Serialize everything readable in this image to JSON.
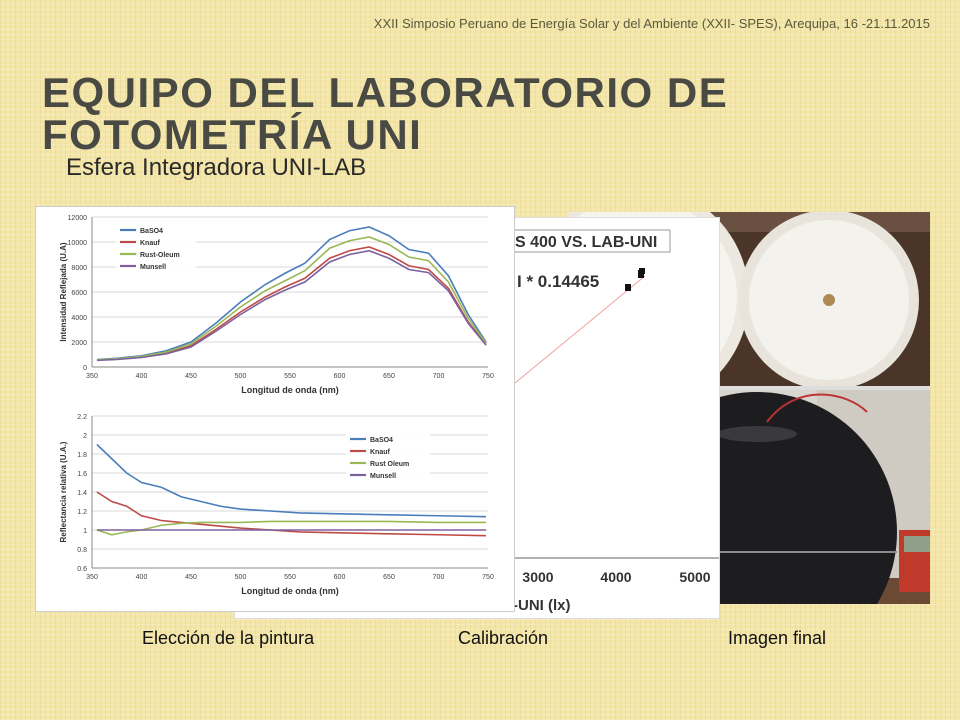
{
  "header": {
    "conference": "XXII Simposio Peruano de Energía Solar y del Ambiente (XXII- SPES), Arequipa, 16 -21.11.2015"
  },
  "slide": {
    "title": "Equipo del Laboratorio de Fotometría UNI",
    "subtitle": "Esfera Integradora UNI-LAB"
  },
  "captions": {
    "paint": "Elección de la pintura",
    "calibration": "Calibración",
    "final": "Imagen final"
  },
  "calibration_panel": {
    "title_fragment": "S 400 VS. LAB-UNI",
    "equation_fragment": "I * 0.14465",
    "x_ticks": [
      "3000",
      "4000",
      "5000"
    ],
    "x_label_fragment": "-UNI (lx)"
  },
  "photos": {
    "top": "integrating-sphere-open-halves",
    "bottom": "integrating-sphere-closed-with-multimeter"
  },
  "chart_data": [
    {
      "type": "line",
      "xlabel": "Longitud de onda (nm)",
      "ylabel": "Intensidad Reflejada (U.A)",
      "xlim": [
        350,
        750
      ],
      "ylim": [
        0,
        12000
      ],
      "x_ticks": [
        350,
        400,
        450,
        500,
        550,
        600,
        650,
        700,
        750
      ],
      "y_ticks": [
        0,
        2000,
        4000,
        6000,
        8000,
        10000,
        12000
      ],
      "grid": true,
      "legend": "top-left",
      "x": [
        355,
        375,
        400,
        425,
        450,
        475,
        500,
        525,
        545,
        565,
        590,
        610,
        630,
        650,
        670,
        690,
        710,
        730,
        748
      ],
      "series": [
        {
          "name": "BaSO4",
          "color": "#4a7ebb",
          "values": [
            600,
            700,
            900,
            1300,
            2000,
            3500,
            5200,
            6600,
            7500,
            8300,
            10200,
            10900,
            11200,
            10500,
            9400,
            9100,
            7300,
            4200,
            2000
          ]
        },
        {
          "name": "Knauf",
          "color": "#be4b48",
          "values": [
            550,
            620,
            800,
            1100,
            1700,
            3000,
            4400,
            5600,
            6400,
            7100,
            8700,
            9300,
            9600,
            9000,
            8100,
            7800,
            6300,
            3600,
            1800
          ]
        },
        {
          "name": "Rust-Oleum",
          "color": "#98b954",
          "values": [
            580,
            660,
            850,
            1200,
            1850,
            3250,
            4800,
            6100,
            6900,
            7700,
            9500,
            10100,
            10400,
            9800,
            8800,
            8500,
            6800,
            3900,
            1900
          ]
        },
        {
          "name": "Munsell",
          "color": "#7d60a0",
          "values": [
            530,
            600,
            760,
            1050,
            1600,
            2850,
            4200,
            5400,
            6150,
            6800,
            8400,
            9000,
            9300,
            8700,
            7800,
            7550,
            6100,
            3500,
            1750
          ]
        }
      ]
    },
    {
      "type": "line",
      "xlabel": "Longitud de onda (nm)",
      "ylabel": "Reflectancia relativa (U.A.)",
      "xlim": [
        350,
        750
      ],
      "ylim": [
        0.6,
        2.2
      ],
      "x_ticks": [
        350,
        400,
        450,
        500,
        550,
        600,
        650,
        700,
        750
      ],
      "y_ticks": [
        0.6,
        0.8,
        1,
        1.2,
        1.4,
        1.6,
        1.8,
        2,
        2.2
      ],
      "grid": true,
      "legend": "top-right",
      "x": [
        355,
        370,
        385,
        400,
        420,
        440,
        460,
        480,
        500,
        530,
        560,
        600,
        650,
        700,
        748
      ],
      "series": [
        {
          "name": "BaSO4",
          "color": "#4a7ebb",
          "values": [
            1.9,
            1.75,
            1.6,
            1.5,
            1.45,
            1.35,
            1.3,
            1.25,
            1.22,
            1.2,
            1.18,
            1.17,
            1.16,
            1.15,
            1.14
          ]
        },
        {
          "name": "Knauf",
          "color": "#be4b48",
          "values": [
            1.4,
            1.3,
            1.25,
            1.15,
            1.1,
            1.08,
            1.06,
            1.04,
            1.02,
            1.0,
            0.98,
            0.97,
            0.96,
            0.95,
            0.94
          ]
        },
        {
          "name": "Rust Oleum",
          "color": "#98b954",
          "values": [
            1.0,
            0.95,
            0.98,
            1.0,
            1.05,
            1.07,
            1.08,
            1.08,
            1.08,
            1.09,
            1.09,
            1.09,
            1.09,
            1.08,
            1.08
          ]
        },
        {
          "name": "Munsell",
          "color": "#7d60a0",
          "values": [
            1,
            1,
            1,
            1,
            1,
            1,
            1,
            1,
            1,
            1,
            1,
            1,
            1,
            1,
            1
          ]
        }
      ]
    }
  ]
}
